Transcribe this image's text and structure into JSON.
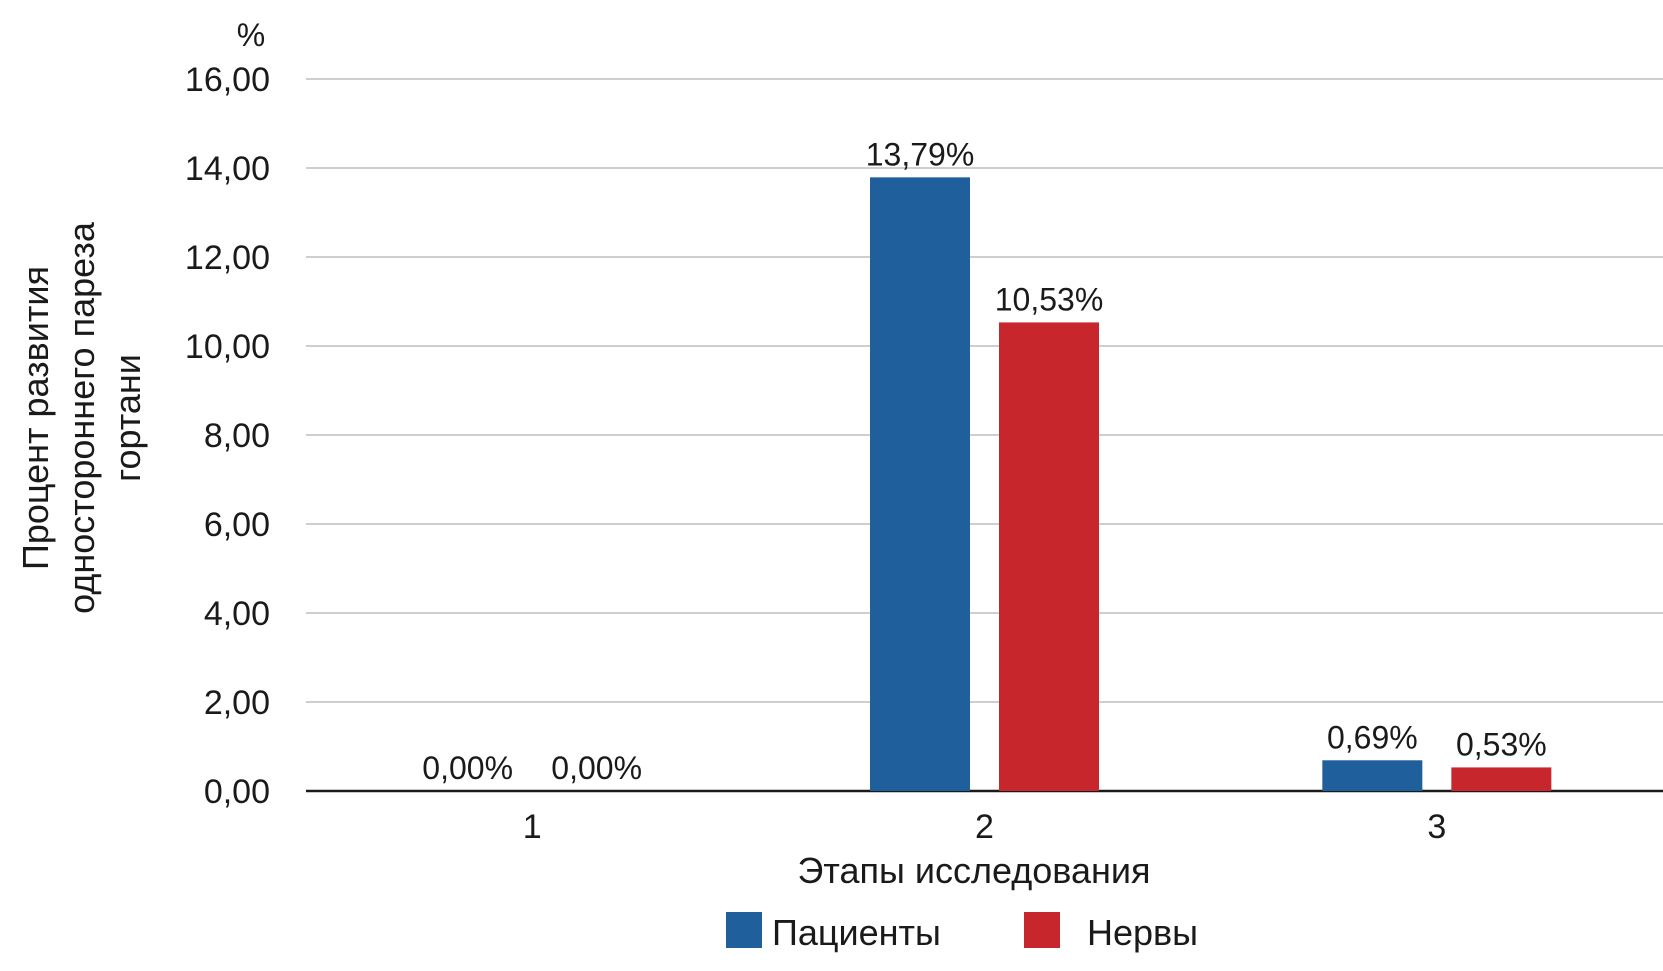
{
  "chart_data": {
    "type": "bar",
    "xlabel": "Этапы исследования",
    "ylabel_lines": [
      "Процент развития",
      "одностороннего пареза",
      "гортани"
    ],
    "yunit": "%",
    "categories": [
      "1",
      "2",
      "3"
    ],
    "ylim": [
      0,
      16
    ],
    "yticks": [
      0,
      2,
      4,
      6,
      8,
      10,
      12,
      14,
      16
    ],
    "ytick_labels": [
      "0,00",
      "2,00",
      "4,00",
      "6,00",
      "8,00",
      "10,00",
      "12,00",
      "14,00",
      "16,00"
    ],
    "grid": true,
    "legend_position": "bottom",
    "series": [
      {
        "name": "Пациенты",
        "color": "#1f5f9b",
        "values": [
          0.0,
          13.79,
          0.69
        ],
        "labels": [
          "0,00%",
          "13,79%",
          "0,69%"
        ]
      },
      {
        "name": "Нервы",
        "color": "#c8262d",
        "values": [
          0.0,
          10.53,
          0.53
        ],
        "labels": [
          "0,00%",
          "10,53%",
          "0,53%"
        ]
      }
    ]
  }
}
